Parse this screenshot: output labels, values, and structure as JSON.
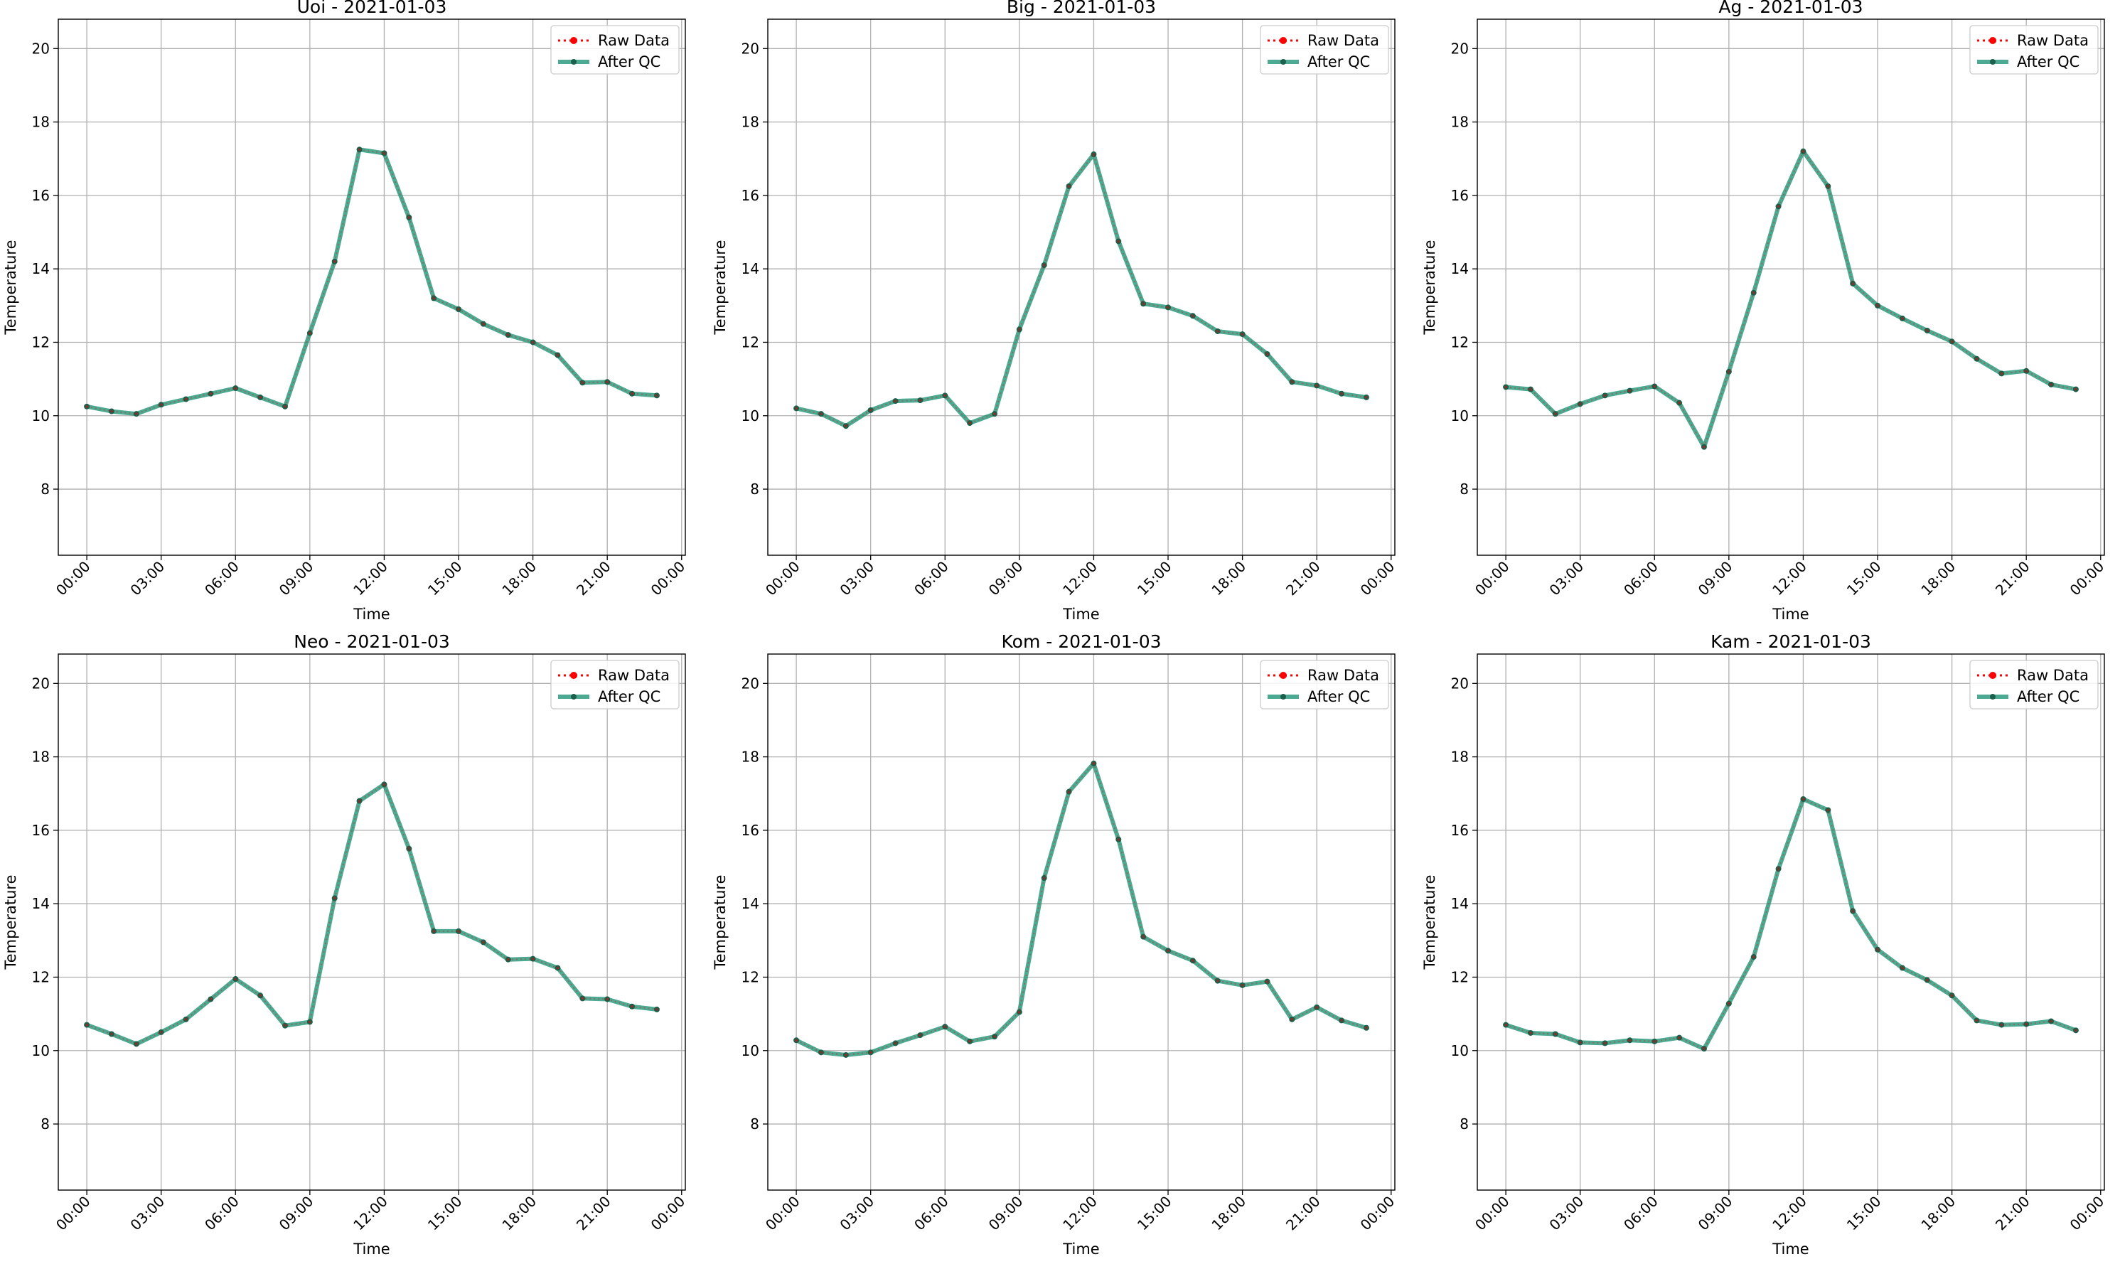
{
  "colors": {
    "raw": "#ff0000",
    "after_qc": "#2b9b7e",
    "marker": "#1c5f4c",
    "grid": "#b0b0b0",
    "legend_border": "#cccccc"
  },
  "chart_data": [
    {
      "type": "line",
      "title": "Uoi - 2021-01-03",
      "xlabel": "Time",
      "ylabel": "Temperature",
      "x": [
        "00:00",
        "01:00",
        "02:00",
        "03:00",
        "04:00",
        "05:00",
        "06:00",
        "07:00",
        "08:00",
        "09:00",
        "10:00",
        "11:00",
        "12:00",
        "13:00",
        "14:00",
        "15:00",
        "16:00",
        "17:00",
        "18:00",
        "19:00",
        "20:00",
        "21:00",
        "22:00",
        "23:00"
      ],
      "xticks": [
        "00:00",
        "03:00",
        "06:00",
        "09:00",
        "12:00",
        "15:00",
        "18:00",
        "21:00",
        "00:00"
      ],
      "yticks": [
        8,
        10,
        12,
        14,
        16,
        18,
        20
      ],
      "ylim": [
        6.2,
        20.8
      ],
      "grid": true,
      "legend": "top-right",
      "series": [
        {
          "name": "Raw Data",
          "style": "dotted",
          "values": [
            10.25,
            10.12,
            10.05,
            10.3,
            10.45,
            10.6,
            10.75,
            10.5,
            10.25,
            12.25,
            14.2,
            17.25,
            17.15,
            15.4,
            13.2,
            12.9,
            12.5,
            12.2,
            12.0,
            11.65,
            10.9,
            10.92,
            10.6,
            10.55
          ]
        },
        {
          "name": "After QC",
          "style": "solid",
          "values": [
            10.25,
            10.12,
            10.05,
            10.3,
            10.45,
            10.6,
            10.75,
            10.5,
            10.25,
            12.25,
            14.2,
            17.25,
            17.15,
            15.4,
            13.2,
            12.9,
            12.5,
            12.2,
            12.0,
            11.65,
            10.9,
            10.92,
            10.6,
            10.55
          ]
        }
      ]
    },
    {
      "type": "line",
      "title": "Big - 2021-01-03",
      "xlabel": "Time",
      "ylabel": "Temperature",
      "x": [
        "00:00",
        "01:00",
        "02:00",
        "03:00",
        "04:00",
        "05:00",
        "06:00",
        "07:00",
        "08:00",
        "09:00",
        "10:00",
        "11:00",
        "12:00",
        "13:00",
        "14:00",
        "15:00",
        "16:00",
        "17:00",
        "18:00",
        "19:00",
        "20:00",
        "21:00",
        "22:00",
        "23:00"
      ],
      "xticks": [
        "00:00",
        "03:00",
        "06:00",
        "09:00",
        "12:00",
        "15:00",
        "18:00",
        "21:00",
        "00:00"
      ],
      "yticks": [
        8,
        10,
        12,
        14,
        16,
        18,
        20
      ],
      "ylim": [
        6.2,
        20.8
      ],
      "grid": true,
      "legend": "top-right",
      "series": [
        {
          "name": "Raw Data",
          "style": "dotted",
          "values": [
            10.2,
            10.05,
            9.72,
            10.15,
            10.4,
            10.42,
            10.55,
            9.8,
            10.05,
            12.35,
            14.1,
            16.25,
            17.12,
            14.75,
            13.05,
            12.95,
            12.72,
            12.3,
            12.22,
            11.68,
            10.92,
            10.82,
            10.6,
            10.5
          ]
        },
        {
          "name": "After QC",
          "style": "solid",
          "values": [
            10.2,
            10.05,
            9.72,
            10.15,
            10.4,
            10.42,
            10.55,
            9.8,
            10.05,
            12.35,
            14.1,
            16.25,
            17.12,
            14.75,
            13.05,
            12.95,
            12.72,
            12.3,
            12.22,
            11.68,
            10.92,
            10.82,
            10.6,
            10.5
          ]
        }
      ]
    },
    {
      "type": "line",
      "title": "Ag - 2021-01-03",
      "xlabel": "Time",
      "ylabel": "Temperature",
      "x": [
        "00:00",
        "01:00",
        "02:00",
        "03:00",
        "04:00",
        "05:00",
        "06:00",
        "07:00",
        "08:00",
        "09:00",
        "10:00",
        "11:00",
        "12:00",
        "13:00",
        "14:00",
        "15:00",
        "16:00",
        "17:00",
        "18:00",
        "19:00",
        "20:00",
        "21:00",
        "22:00",
        "23:00"
      ],
      "xticks": [
        "00:00",
        "03:00",
        "06:00",
        "09:00",
        "12:00",
        "15:00",
        "18:00",
        "21:00",
        "00:00"
      ],
      "yticks": [
        8,
        10,
        12,
        14,
        16,
        18,
        20
      ],
      "ylim": [
        6.2,
        20.8
      ],
      "grid": true,
      "legend": "top-right",
      "series": [
        {
          "name": "Raw Data",
          "style": "dotted",
          "values": [
            10.78,
            10.72,
            10.05,
            10.32,
            10.55,
            10.68,
            10.8,
            10.35,
            9.15,
            11.2,
            13.35,
            15.7,
            17.2,
            16.25,
            13.6,
            13.0,
            12.65,
            12.32,
            12.02,
            11.55,
            11.15,
            11.22,
            10.85,
            10.72
          ]
        },
        {
          "name": "After QC",
          "style": "solid",
          "values": [
            10.78,
            10.72,
            10.05,
            10.32,
            10.55,
            10.68,
            10.8,
            10.35,
            9.15,
            11.2,
            13.35,
            15.7,
            17.2,
            16.25,
            13.6,
            13.0,
            12.65,
            12.32,
            12.02,
            11.55,
            11.15,
            11.22,
            10.85,
            10.72
          ]
        }
      ]
    },
    {
      "type": "line",
      "title": "Neo - 2021-01-03",
      "xlabel": "Time",
      "ylabel": "Temperature",
      "x": [
        "00:00",
        "01:00",
        "02:00",
        "03:00",
        "04:00",
        "05:00",
        "06:00",
        "07:00",
        "08:00",
        "09:00",
        "10:00",
        "11:00",
        "12:00",
        "13:00",
        "14:00",
        "15:00",
        "16:00",
        "17:00",
        "18:00",
        "19:00",
        "20:00",
        "21:00",
        "22:00",
        "23:00"
      ],
      "xticks": [
        "00:00",
        "03:00",
        "06:00",
        "09:00",
        "12:00",
        "15:00",
        "18:00",
        "21:00",
        "00:00"
      ],
      "yticks": [
        8,
        10,
        12,
        14,
        16,
        18,
        20
      ],
      "ylim": [
        6.2,
        20.8
      ],
      "grid": true,
      "legend": "top-right",
      "series": [
        {
          "name": "Raw Data",
          "style": "dotted",
          "values": [
            10.7,
            10.45,
            10.18,
            10.5,
            10.85,
            11.4,
            11.95,
            11.5,
            10.68,
            10.78,
            14.15,
            16.8,
            17.25,
            15.5,
            13.25,
            13.25,
            12.95,
            12.48,
            12.5,
            12.25,
            11.42,
            11.4,
            11.2,
            11.12
          ]
        },
        {
          "name": "After QC",
          "style": "solid",
          "values": [
            10.7,
            10.45,
            10.18,
            10.5,
            10.85,
            11.4,
            11.95,
            11.5,
            10.68,
            10.78,
            14.15,
            16.8,
            17.25,
            15.5,
            13.25,
            13.25,
            12.95,
            12.48,
            12.5,
            12.25,
            11.42,
            11.4,
            11.2,
            11.12
          ]
        }
      ]
    },
    {
      "type": "line",
      "title": "Kom - 2021-01-03",
      "xlabel": "Time",
      "ylabel": "Temperature",
      "x": [
        "00:00",
        "01:00",
        "02:00",
        "03:00",
        "04:00",
        "05:00",
        "06:00",
        "07:00",
        "08:00",
        "09:00",
        "10:00",
        "11:00",
        "12:00",
        "13:00",
        "14:00",
        "15:00",
        "16:00",
        "17:00",
        "18:00",
        "19:00",
        "20:00",
        "21:00",
        "22:00",
        "23:00"
      ],
      "xticks": [
        "00:00",
        "03:00",
        "06:00",
        "09:00",
        "12:00",
        "15:00",
        "18:00",
        "21:00",
        "00:00"
      ],
      "yticks": [
        8,
        10,
        12,
        14,
        16,
        18,
        20
      ],
      "ylim": [
        6.2,
        20.8
      ],
      "grid": true,
      "legend": "top-right",
      "series": [
        {
          "name": "Raw Data",
          "style": "dotted",
          "values": [
            10.28,
            9.95,
            9.88,
            9.95,
            10.2,
            10.42,
            10.65,
            10.25,
            10.38,
            11.05,
            14.7,
            17.05,
            17.82,
            15.75,
            13.1,
            12.72,
            12.45,
            11.9,
            11.78,
            11.88,
            10.85,
            11.18,
            10.82,
            10.62
          ]
        },
        {
          "name": "After QC",
          "style": "solid",
          "values": [
            10.28,
            9.95,
            9.88,
            9.95,
            10.2,
            10.42,
            10.65,
            10.25,
            10.38,
            11.05,
            14.7,
            17.05,
            17.82,
            15.75,
            13.1,
            12.72,
            12.45,
            11.9,
            11.78,
            11.88,
            10.85,
            11.18,
            10.82,
            10.62
          ]
        }
      ]
    },
    {
      "type": "line",
      "title": "Kam - 2021-01-03",
      "xlabel": "Time",
      "ylabel": "Temperature",
      "x": [
        "00:00",
        "01:00",
        "02:00",
        "03:00",
        "04:00",
        "05:00",
        "06:00",
        "07:00",
        "08:00",
        "09:00",
        "10:00",
        "11:00",
        "12:00",
        "13:00",
        "14:00",
        "15:00",
        "16:00",
        "17:00",
        "18:00",
        "19:00",
        "20:00",
        "21:00",
        "22:00",
        "23:00"
      ],
      "xticks": [
        "00:00",
        "03:00",
        "06:00",
        "09:00",
        "12:00",
        "15:00",
        "18:00",
        "21:00",
        "00:00"
      ],
      "yticks": [
        8,
        10,
        12,
        14,
        16,
        18,
        20
      ],
      "ylim": [
        6.2,
        20.8
      ],
      "grid": true,
      "legend": "top-right",
      "series": [
        {
          "name": "Raw Data",
          "style": "dotted",
          "values": [
            10.7,
            10.48,
            10.45,
            10.22,
            10.2,
            10.28,
            10.25,
            10.35,
            10.05,
            11.28,
            12.55,
            14.95,
            16.85,
            16.55,
            13.8,
            12.75,
            12.25,
            11.92,
            11.5,
            10.82,
            10.7,
            10.72,
            10.8,
            10.55
          ]
        },
        {
          "name": "After QC",
          "style": "solid",
          "values": [
            10.7,
            10.48,
            10.45,
            10.22,
            10.2,
            10.28,
            10.25,
            10.35,
            10.05,
            11.28,
            12.55,
            14.95,
            16.85,
            16.55,
            13.8,
            12.75,
            12.25,
            11.92,
            11.5,
            10.82,
            10.7,
            10.72,
            10.8,
            10.55
          ]
        }
      ]
    }
  ]
}
